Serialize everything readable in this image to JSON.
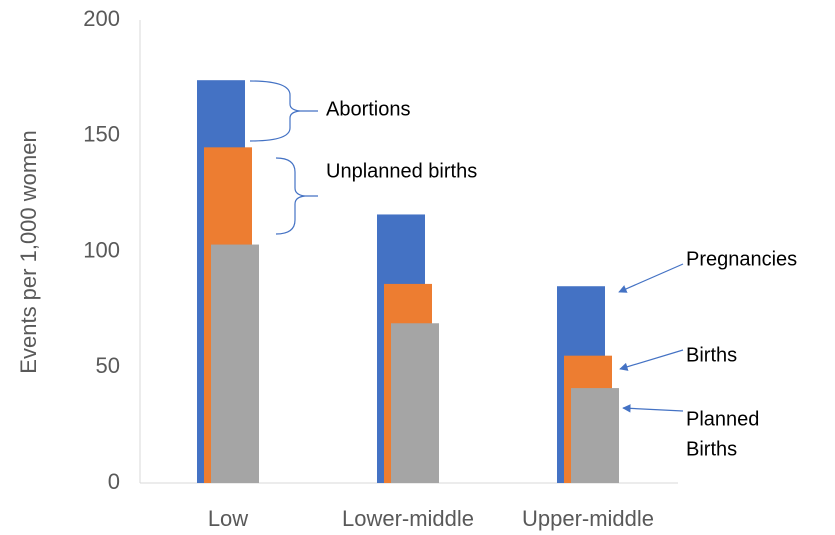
{
  "chart_data": {
    "type": "overlap_bar",
    "ylabel": "Events per 1,000 women",
    "categories": [
      "Low",
      "Lower-middle",
      "Upper-middle"
    ],
    "series": [
      {
        "name": "Pregnancies",
        "color": "#4472c4",
        "values": [
          174,
          116,
          85
        ]
      },
      {
        "name": "Births",
        "color": "#ed7d31",
        "values": [
          145,
          86,
          55
        ]
      },
      {
        "name": "Planned Births",
        "color": "#a5a5a5",
        "values": [
          103,
          69,
          41
        ]
      }
    ],
    "ylim": [
      0,
      200
    ],
    "yticks": [
      0,
      50,
      100,
      150,
      200
    ],
    "grid": false,
    "annotations": [
      "Abortions",
      "Unplanned births",
      "Pregnancies",
      "Births",
      [
        "Planned",
        "Births"
      ]
    ]
  }
}
